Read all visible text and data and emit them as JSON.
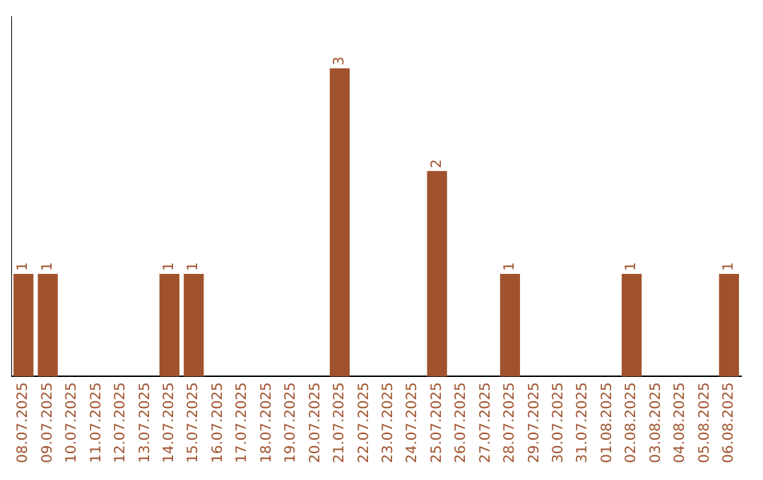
{
  "chart_data": {
    "type": "bar",
    "categories": [
      "08.07.2025",
      "09.07.2025",
      "10.07.2025",
      "11.07.2025",
      "12.07.2025",
      "13.07.2025",
      "14.07.2025",
      "15.07.2025",
      "16.07.2025",
      "17.07.2025",
      "18.07.2025",
      "19.07.2025",
      "20.07.2025",
      "21.07.2025",
      "22.07.2025",
      "23.07.2025",
      "24.07.2025",
      "25.07.2025",
      "26.07.2025",
      "27.07.2025",
      "28.07.2025",
      "29.07.2025",
      "30.07.2025",
      "31.07.2025",
      "01.08.2025",
      "02.08.2025",
      "03.08.2025",
      "04.08.2025",
      "05.08.2025",
      "06.08.2025"
    ],
    "values": [
      1,
      1,
      0,
      0,
      0,
      0,
      1,
      1,
      0,
      0,
      0,
      0,
      0,
      3,
      0,
      0,
      0,
      2,
      0,
      0,
      1,
      0,
      0,
      0,
      0,
      1,
      0,
      0,
      0,
      1
    ],
    "value_labels": [
      "1",
      "1",
      null,
      null,
      null,
      null,
      "1",
      "1",
      null,
      null,
      null,
      null,
      null,
      "3",
      null,
      null,
      null,
      "2",
      null,
      null,
      "1",
      null,
      null,
      null,
      null,
      "1",
      null,
      null,
      null,
      "1"
    ],
    "color": "#a0522d",
    "grid": false,
    "legend": false,
    "tick_labels": "x"
  }
}
